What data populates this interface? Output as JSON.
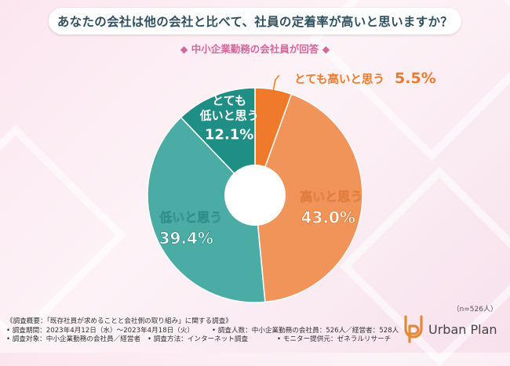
{
  "title": "あなたの会社は他の会社と比べて、社員の定着率が高いと思いますか？",
  "subtitle": "中小企業勤務の会社員が回答",
  "n_note": "（n=526人）",
  "chart_data": {
    "type": "pie",
    "slices": [
      {
        "label": "とても高いと思う",
        "value": 5.5,
        "display": "5.5%",
        "color": "#ef7a2b"
      },
      {
        "label": "高いと思う",
        "value": 43.0,
        "display": "43.0%",
        "color": "#f0945a"
      },
      {
        "label": "低いと思う",
        "value": 39.4,
        "display": "39.4%",
        "color": "#4aaca4"
      },
      {
        "label": "とても低いと思う",
        "value": 12.1,
        "display": "12.1%",
        "color": "#1f8e85"
      }
    ]
  },
  "footer": {
    "overview": "《調査概要：「既存社員が求めることと会社側の取り組み」に関する調査》",
    "period": "• 調査期間：2023年4月12日（水）〜2023年4月18日（火）",
    "respondents": "• 調査人数：中小企業勤務の会社員：526人／経営者：528人",
    "target": "• 調査対象：中小企業勤務の会社員／経営者",
    "method": "• 調査方法：インターネット調査",
    "provider": "• モニター提供元：ゼネラルリサーチ"
  },
  "logo": {
    "text": "Urban Plan",
    "color": "#e08a3a"
  }
}
